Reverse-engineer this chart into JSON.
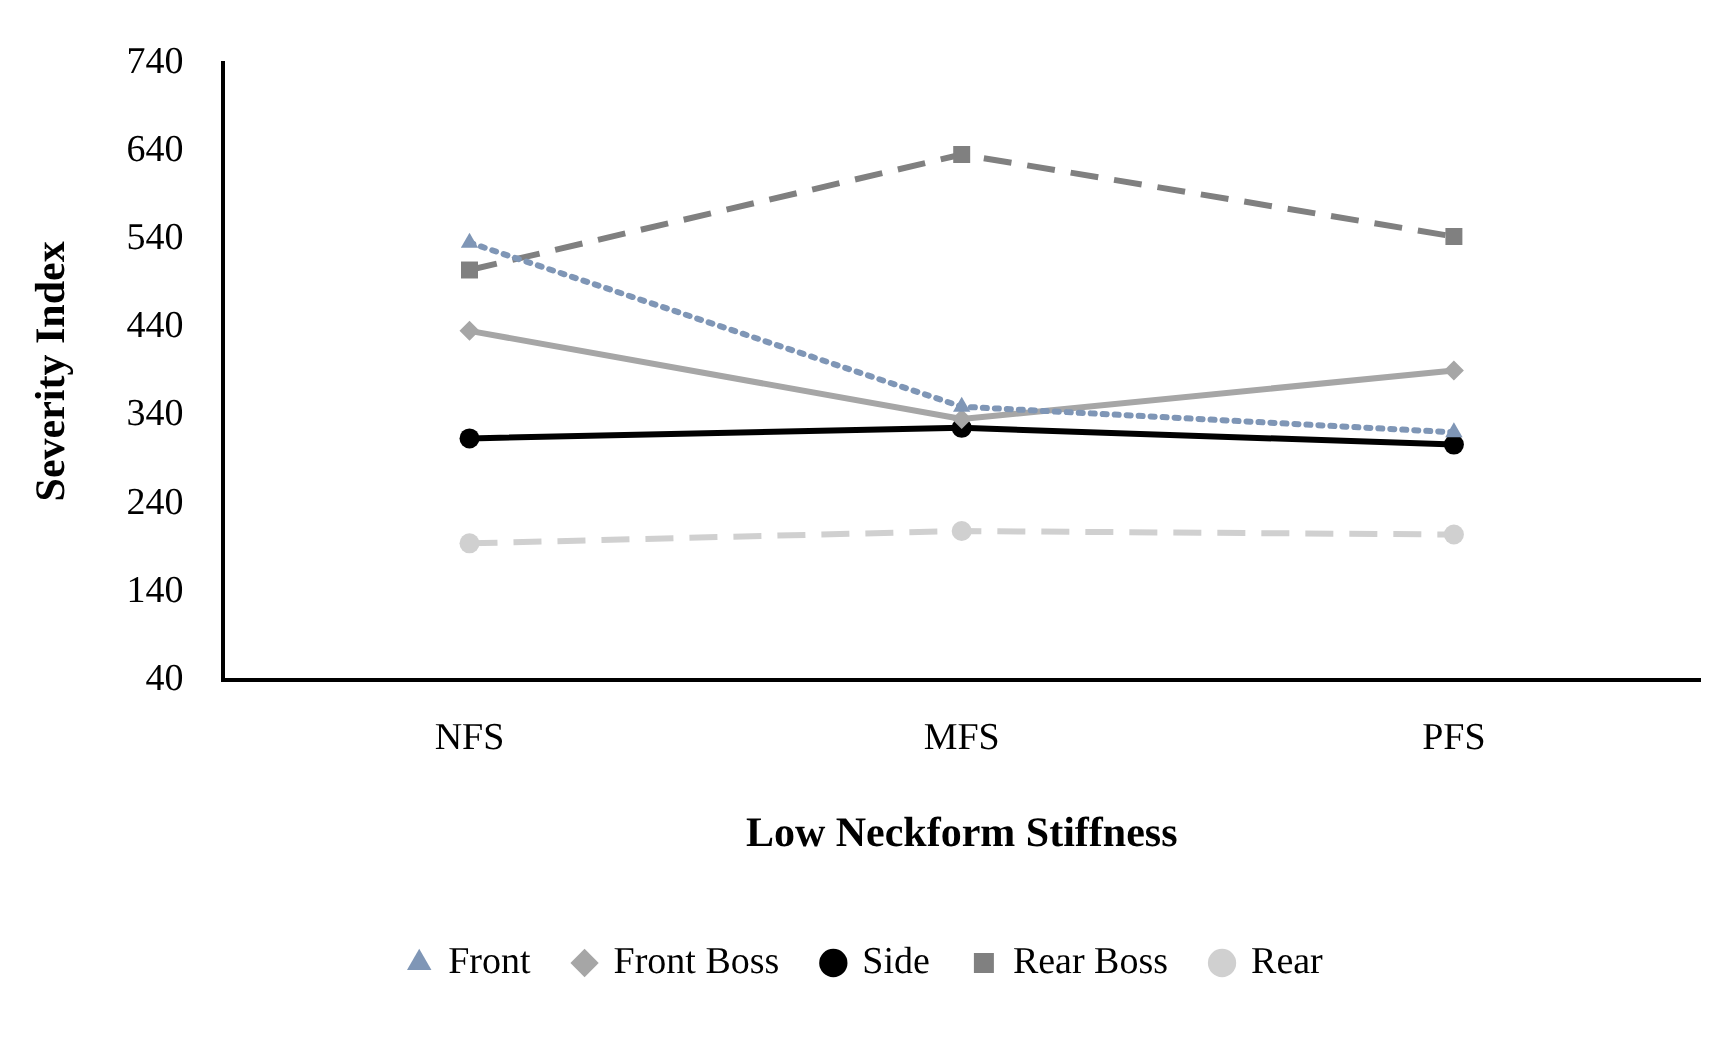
{
  "chart_data": {
    "type": "line",
    "xlabel": "Low Neckform Stiffness",
    "ylabel": "Severity Index",
    "categories": [
      "NFS",
      "MFS",
      "PFS"
    ],
    "series": [
      {
        "name": "Front",
        "color": "#7f96b6",
        "values": [
          536,
          350,
          321
        ],
        "marker": "triangle",
        "line_style": "dotted"
      },
      {
        "name": "Front Boss",
        "color": "#a6a6a6",
        "values": [
          436,
          336,
          391
        ],
        "marker": "diamond",
        "line_style": "solid"
      },
      {
        "name": "Side",
        "color": "#000000",
        "values": [
          314,
          326,
          307
        ],
        "marker": "circle",
        "line_style": "solid"
      },
      {
        "name": "Rear Boss",
        "color": "#808080",
        "values": [
          505,
          636,
          543
        ],
        "marker": "square",
        "line_style": "dashed"
      },
      {
        "name": "Rear",
        "color": "#d0d0d0",
        "values": [
          195,
          209,
          205
        ],
        "marker": "circle",
        "line_style": "dashed"
      }
    ],
    "ylim": [
      40,
      740
    ],
    "yticks": [
      40,
      140,
      240,
      340,
      440,
      540,
      640,
      740
    ],
    "grid": false,
    "legend": "bottom"
  }
}
